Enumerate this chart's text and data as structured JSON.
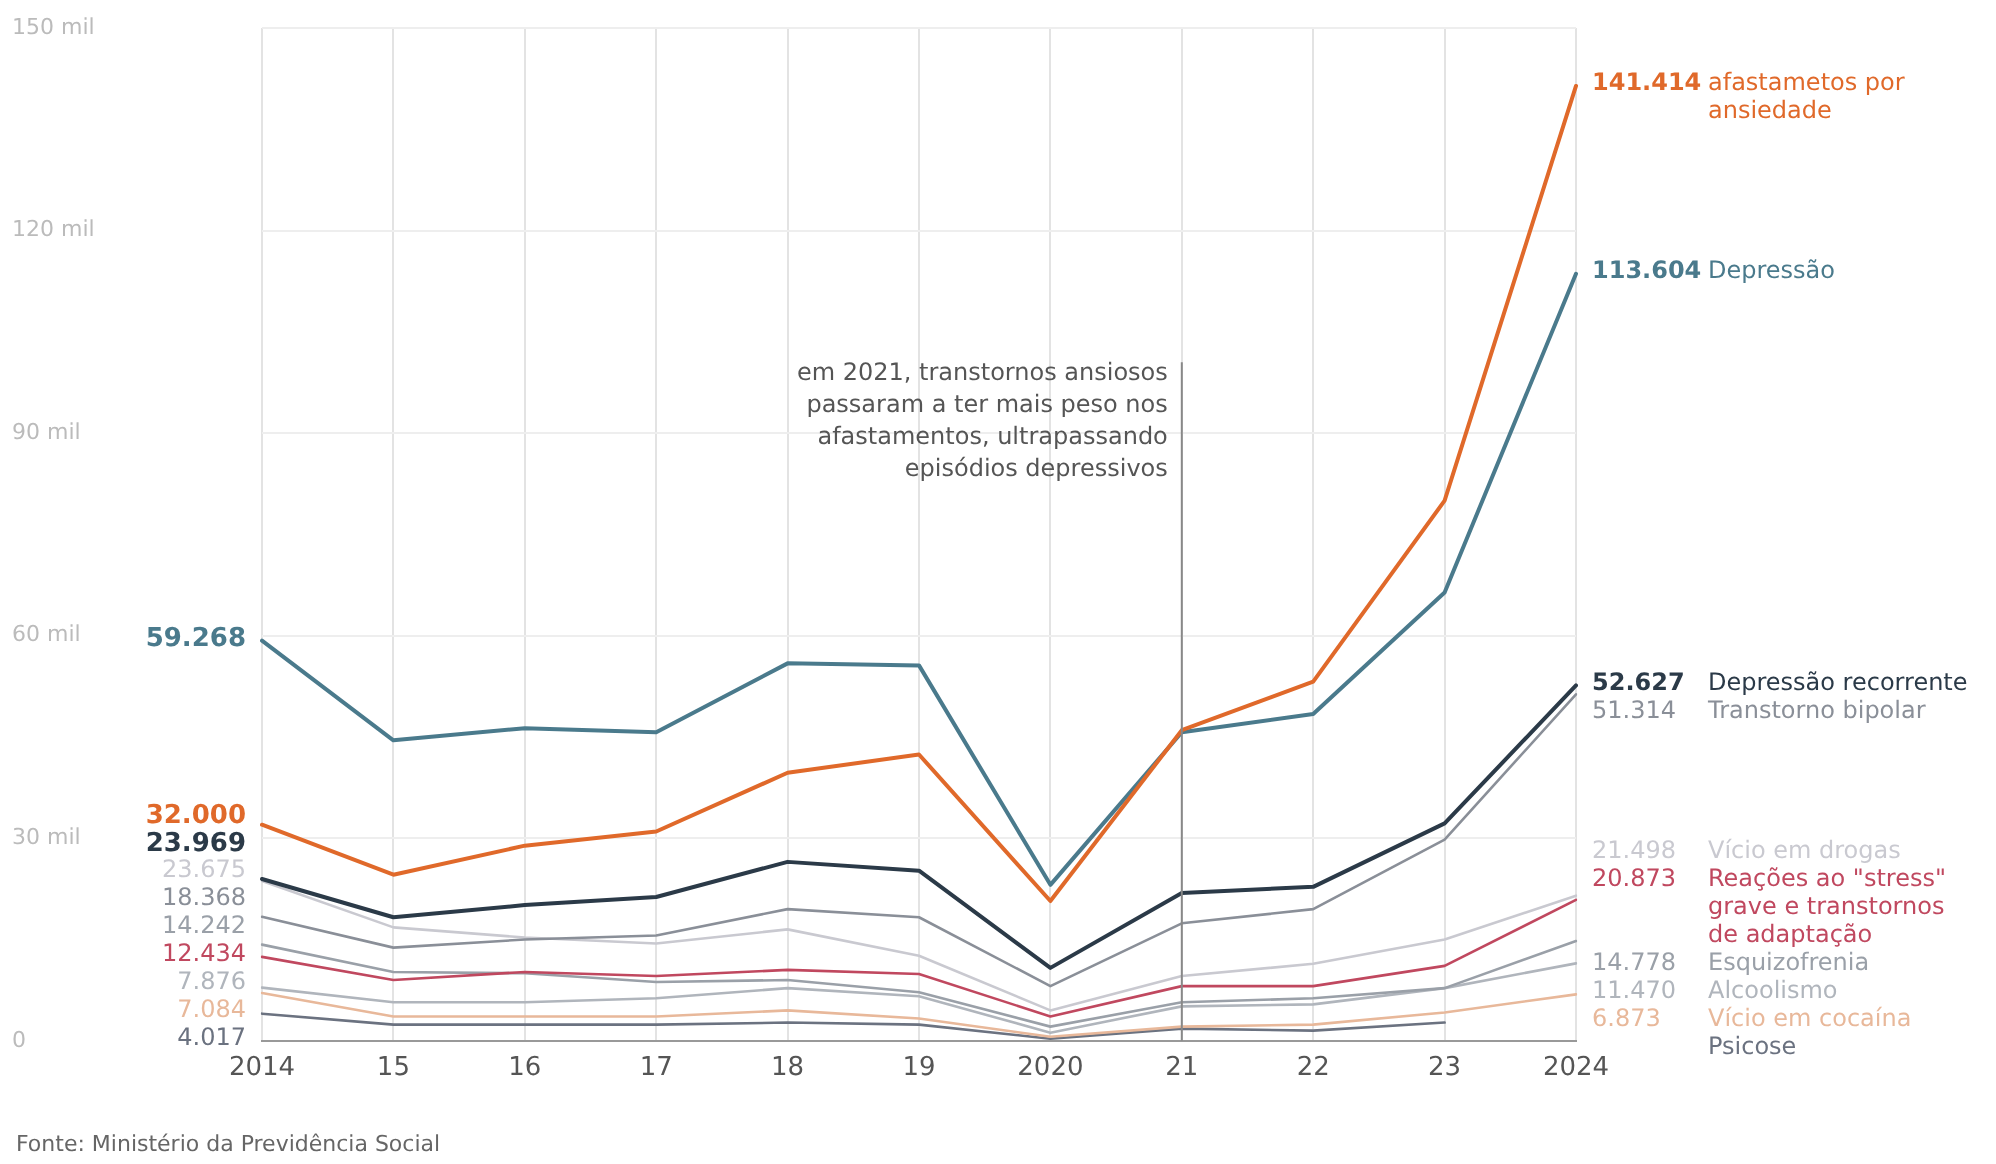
{
  "chart_data": {
    "type": "line",
    "categories": [
      "2014",
      "15",
      "16",
      "17",
      "18",
      "19",
      "2020",
      "21",
      "22",
      "23",
      "2024"
    ],
    "ylim": [
      0,
      150
    ],
    "yticks": [
      0,
      {
        "value": 30,
        "label": "30 mil"
      },
      {
        "value": 60,
        "label": "60 mil"
      },
      {
        "value": 90,
        "label": "90 mil"
      },
      {
        "value": 120,
        "label": "120 mil"
      },
      {
        "value": 150,
        "label": "150 mil"
      }
    ],
    "grid": true,
    "legend": false,
    "marker": "none",
    "line_style": "solid",
    "series": [
      {
        "name": "afastametos por ansiedade",
        "color": "#e0692a",
        "values": [
          32.0,
          24.6,
          28.9,
          31.0,
          39.7,
          42.4,
          20.7,
          46.0,
          53.2,
          80.0,
          141.414
        ],
        "value_labels": [
          "32.000",
          null,
          null,
          null,
          null,
          null,
          null,
          null,
          null,
          null,
          "141.414"
        ]
      },
      {
        "name": "Depressão",
        "color": "#4a7a8c",
        "values": [
          59.268,
          44.5,
          46.3,
          45.7,
          55.9,
          55.6,
          23.1,
          45.7,
          48.4,
          66.4,
          113.604
        ],
        "value_labels": [
          "59.268",
          null,
          null,
          null,
          null,
          null,
          null,
          null,
          null,
          null,
          "113.604"
        ]
      },
      {
        "name": "Depressão recorrente",
        "color": "#2b3a48",
        "values": [
          23.969,
          18.3,
          20.1,
          21.3,
          26.5,
          25.2,
          10.8,
          21.9,
          22.8,
          32.2,
          52.627
        ],
        "value_labels": [
          "23.969",
          null,
          null,
          null,
          null,
          null,
          null,
          null,
          null,
          null,
          "52.627"
        ]
      },
      {
        "name": "Transtorno bipolar",
        "color": "#8a8f98",
        "values": [
          18.368,
          13.8,
          15.0,
          15.6,
          19.5,
          18.3,
          8.1,
          17.4,
          19.5,
          29.8,
          51.314
        ],
        "value_labels": [
          "18.368",
          null,
          null,
          null,
          null,
          null,
          null,
          null,
          null,
          null,
          "51.314"
        ]
      },
      {
        "name": "Vício em drogas",
        "color": "#c9c9d0",
        "values": [
          23.675,
          16.8,
          15.3,
          14.4,
          16.5,
          12.6,
          4.5,
          9.6,
          11.4,
          15.0,
          21.498
        ],
        "value_labels": [
          "23.675",
          null,
          null,
          null,
          null,
          null,
          null,
          null,
          null,
          null,
          "21.498"
        ]
      },
      {
        "name": "Reações ao \"stress\" grave e transtornos de adaptação",
        "color": "#c0485f",
        "values": [
          12.434,
          9.0,
          10.2,
          9.6,
          10.5,
          9.9,
          3.6,
          8.1,
          8.1,
          11.1,
          20.873
        ],
        "value_labels": [
          "12.434",
          null,
          null,
          null,
          null,
          null,
          null,
          null,
          null,
          null,
          "20.873"
        ]
      },
      {
        "name": "Esquizofrenia",
        "color": "#9aa0a8",
        "values": [
          14.242,
          10.2,
          10.0,
          8.7,
          9.0,
          7.2,
          2.1,
          5.7,
          6.3,
          7.8,
          14.778
        ],
        "value_labels": [
          "14.242",
          null,
          null,
          null,
          null,
          null,
          null,
          null,
          null,
          null,
          "14.778"
        ]
      },
      {
        "name": "Alcoolismo",
        "color": "#b0b5bc",
        "values": [
          7.876,
          5.7,
          5.7,
          6.3,
          7.8,
          6.6,
          1.2,
          5.1,
          5.4,
          7.8,
          11.47
        ],
        "value_labels": [
          "7.876",
          null,
          null,
          null,
          null,
          null,
          null,
          null,
          null,
          null,
          "11.470"
        ]
      },
      {
        "name": "Vício em cocaína",
        "color": "#e8b89a",
        "values": [
          7.084,
          3.6,
          3.6,
          3.6,
          4.5,
          3.3,
          0.6,
          2.1,
          2.4,
          4.2,
          6.873
        ],
        "value_labels": [
          "7.084",
          null,
          null,
          null,
          null,
          null,
          null,
          null,
          null,
          null,
          "6.873"
        ]
      },
      {
        "name": "Psicose",
        "color": "#6b7280",
        "values": [
          4.017,
          2.4,
          2.4,
          2.4,
          2.7,
          2.4,
          0.3,
          1.8,
          1.5,
          2.7,
          null
        ],
        "value_labels": [
          "4.017",
          null,
          null,
          null,
          null,
          null,
          null,
          null,
          null,
          null,
          null
        ]
      }
    ],
    "ref_lines": [
      {
        "axis": "x",
        "value": "21",
        "label": "em 2021, transtornos ansiosos passaram a ter mais peso nos afastamentos, ultrapassando episódios depressivos",
        "color": "#888888"
      }
    ],
    "annotations": [
      "Fonte: Ministério da Previdência Social"
    ]
  }
}
